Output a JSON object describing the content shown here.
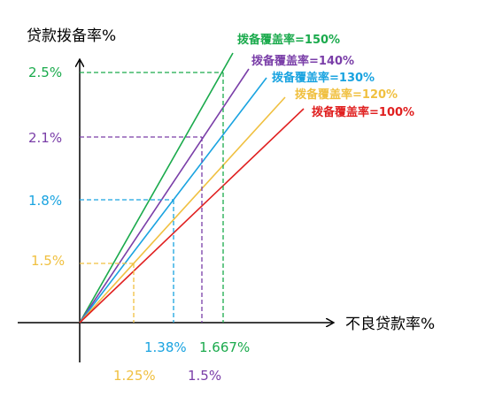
{
  "chart_data": {
    "type": "line",
    "ylabel": "贷款拨备率%",
    "xlabel": "不良贷款率%",
    "x_ticks": [
      "1.38%",
      "1.667%",
      "1.25%",
      "1.5%"
    ],
    "y_ticks": [
      "2.5%",
      "2.1%",
      "1.8%",
      "1.5%"
    ],
    "series": [
      {
        "name": "拨备覆盖率=150%",
        "ratio": 1.5,
        "color": "#1aaa4c",
        "marker": {
          "x": 1.667,
          "y": 2.5
        }
      },
      {
        "name": "拨备覆盖率=140%",
        "ratio": 1.4,
        "color": "#7a3ea8",
        "marker": {
          "x": 1.5,
          "y": 2.1
        }
      },
      {
        "name": "拨备覆盖率=130%",
        "ratio": 1.3,
        "color": "#19a3e0",
        "marker": {
          "x": 1.38,
          "y": 1.8
        }
      },
      {
        "name": "拨备覆盖率=120%",
        "ratio": 1.2,
        "color": "#f0c040",
        "marker": {
          "x": 1.25,
          "y": 1.5
        }
      },
      {
        "name": "拨备覆盖率=100%",
        "ratio": 1.0,
        "color": "#e02020",
        "marker": null
      }
    ]
  }
}
